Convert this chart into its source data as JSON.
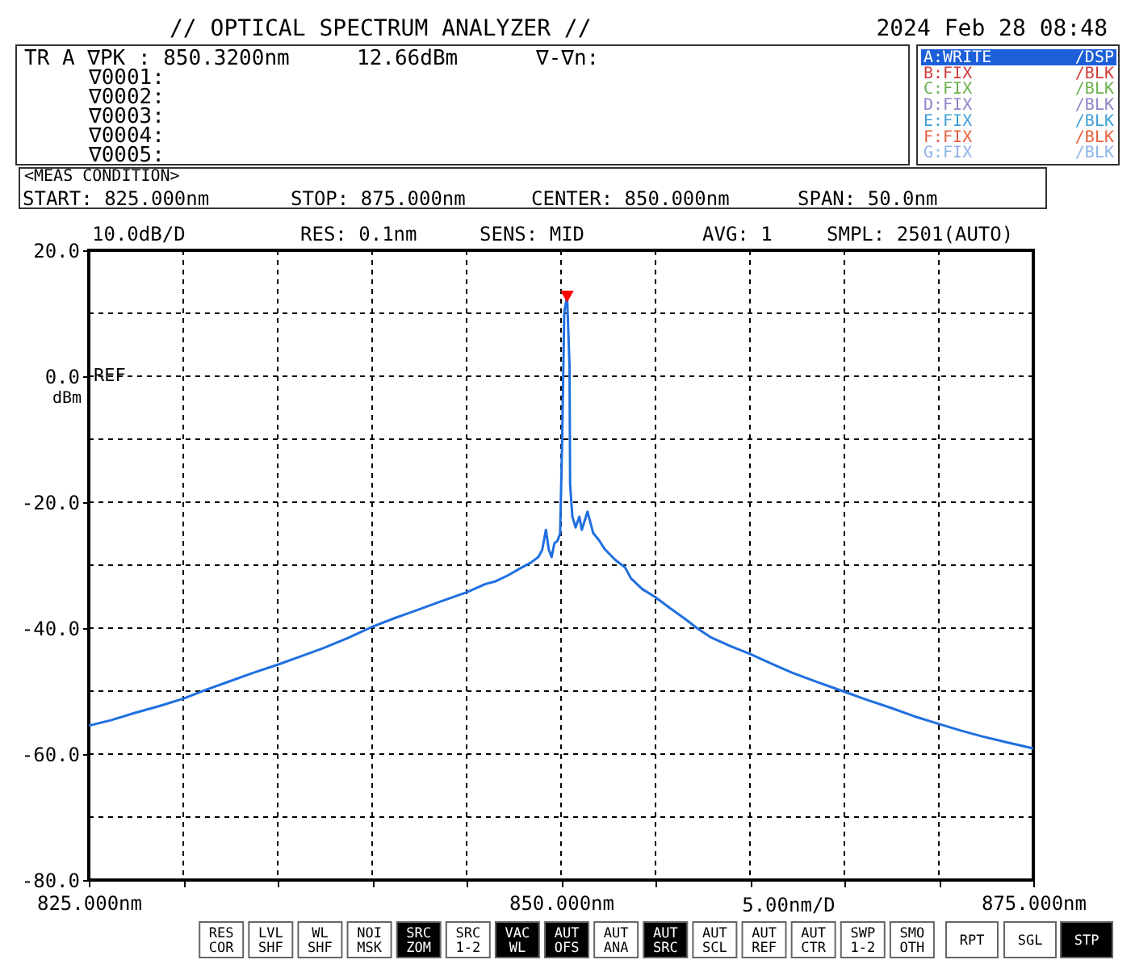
{
  "chart_data": {
    "type": "line",
    "title": "// OPTICAL SPECTRUM ANALYZER //",
    "xlabel": "5.00nm/D",
    "ylabel": "dBm",
    "series": [
      {
        "type": "line",
        "color": "#1f6fe0",
        "x": [
          825.0,
          826.2,
          827.4,
          828.7,
          830.0,
          831.2,
          832.5,
          833.7,
          835.0,
          836.2,
          837.4,
          838.7,
          840.0,
          841.2,
          842.5,
          843.7,
          845.0,
          846.0,
          846.5,
          847.2,
          847.9,
          848.4,
          848.8,
          849.0,
          849.2,
          849.35,
          849.5,
          849.65,
          849.8,
          849.95,
          850.06,
          850.17,
          850.32,
          850.4,
          850.45,
          850.48,
          850.6,
          850.77,
          850.97,
          851.1,
          851.4,
          851.7,
          852.0,
          852.3,
          852.85,
          853.4,
          853.7,
          854.3,
          855.0,
          855.8,
          856.55,
          857.2,
          857.95,
          859.0,
          860.0,
          861.1,
          862.25,
          863.6,
          865.0,
          866.2,
          867.4,
          868.7,
          870.0,
          871.2,
          872.3,
          873.7,
          875.0
        ],
        "values": [
          -55.5,
          -54.6,
          -53.5,
          -52.4,
          -51.2,
          -49.8,
          -48.4,
          -47.1,
          -45.8,
          -44.5,
          -43.2,
          -41.6,
          -39.8,
          -38.4,
          -37.0,
          -35.7,
          -34.3,
          -33.0,
          -32.6,
          -31.6,
          -30.4,
          -29.6,
          -28.7,
          -27.6,
          -24.4,
          -27.5,
          -28.7,
          -26.5,
          -26.2,
          -25.0,
          -10.3,
          10.2,
          12.66,
          5.9,
          1.6,
          -17.2,
          -22.3,
          -24.0,
          -22.3,
          -24.4,
          -21.5,
          -24.9,
          -26.0,
          -27.4,
          -29.1,
          -30.4,
          -32.1,
          -33.8,
          -35.1,
          -36.9,
          -38.5,
          -40.0,
          -41.5,
          -42.9,
          -44.1,
          -45.6,
          -47.1,
          -48.6,
          -50.1,
          -51.4,
          -52.6,
          -54.0,
          -55.2,
          -56.3,
          -57.2,
          -58.2,
          -59.1
        ]
      },
      {
        "type": "scatter",
        "marker": "triangle",
        "color": "#ff0000",
        "x": [
          850.32
        ],
        "values": [
          12.66
        ]
      }
    ],
    "xlim": [
      825,
      875
    ],
    "xticks": [
      {
        "value": 825,
        "label": "825.000nm"
      },
      {
        "value": 830,
        "label": null
      },
      {
        "value": 835,
        "label": null
      },
      {
        "value": 840,
        "label": null
      },
      {
        "value": 845,
        "label": null
      },
      {
        "value": 850,
        "label": "850.000nm"
      },
      {
        "value": 855,
        "label": null
      },
      {
        "value": 860,
        "label": null
      },
      {
        "value": 865,
        "label": null
      },
      {
        "value": 870,
        "label": null
      },
      {
        "value": 875,
        "label": "875.000nm"
      }
    ],
    "ylim": [
      -80,
      20
    ],
    "yticks": [
      {
        "value": 20,
        "label": "20.0"
      },
      {
        "value": 10,
        "label": null
      },
      {
        "value": 0,
        "label": "0.0"
      },
      {
        "value": -10,
        "label": null
      },
      {
        "value": -20,
        "label": "-20.0"
      },
      {
        "value": -30,
        "label": null
      },
      {
        "value": -40,
        "label": "-40.0"
      },
      {
        "value": -50,
        "label": null
      },
      {
        "value": -60,
        "label": "-60.0"
      },
      {
        "value": -70,
        "label": null
      },
      {
        "value": -80,
        "label": "-80.0"
      }
    ],
    "grid": true,
    "annotations": [
      "2024 Feb 28 08:48",
      "TR A ∇PK : 850.3200nm",
      "12.66dBm",
      "∇-∇n:",
      "∇0001:",
      "∇0002:",
      "∇0003:",
      "∇0004:",
      "∇0005:",
      "A:WRITE",
      "/DSP",
      "B:FIX",
      "/BLK",
      "C:FIX",
      "/BLK",
      "D:FIX",
      "/BLK",
      "E:FIX",
      "/BLK",
      "F:FIX",
      "/BLK",
      "G:FIX",
      "/BLK",
      "<MEAS CONDITION>",
      "START: 825.000nm",
      "STOP: 875.000nm",
      "CENTER: 850.000nm",
      "SPAN: 50.0nm",
      "10.0dB/D",
      "RES: 0.1nm",
      "SENS: MID",
      "AVG: 1",
      "SMPL: 2501(AUTO)",
      "REF",
      "RES COR",
      "LVL SHF",
      "WL SHF",
      "NOI MSK",
      "SRC ZOM",
      "SRC 1-2",
      "VAC WL",
      "AUT OFS",
      "AUT ANA",
      "AUT SRC",
      "AUT SCL",
      "AUT REF",
      "AUT CTR",
      "SWP 1-2",
      "SMO OTH",
      "RPT",
      "SGL",
      "STP"
    ]
  }
}
